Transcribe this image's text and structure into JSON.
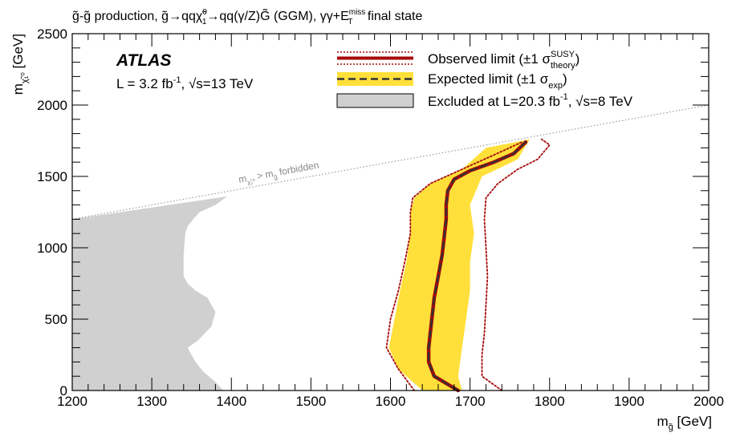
{
  "chart_data": {
    "type": "line",
    "title": "g̃-g̃ production, g̃→qqχ̃₁⁰→qq(γ/Z)G̃ (GGM), γγ+E_T^miss final state",
    "title_parts": {
      "a": "g̃-g̃ production, g̃→qqχ̃",
      "sup1": "0",
      "sub1": "1",
      "b": "→qq(γ/Z)G̃ (GGM), γγ+E",
      "sup2": "miss",
      "sub2": "T",
      "c": " final state"
    },
    "xlabel": {
      "main": "m",
      "sub": "g̃",
      "rest": " [GeV]"
    },
    "ylabel": {
      "main": "m",
      "sub": "χ̃₁⁰",
      "rest": " [GeV]"
    },
    "xlim": [
      1200,
      2000
    ],
    "ylim": [
      0,
      2500
    ],
    "xticks": [
      "1200",
      "1300",
      "1400",
      "1500",
      "1600",
      "1700",
      "1800",
      "1900",
      "2000"
    ],
    "yticks": [
      "0",
      "500",
      "1000",
      "1500",
      "2000",
      "2500"
    ],
    "experiment_label": "ATLAS",
    "lumi_label": {
      "a": "L = 3.2 fb",
      "sup": "-1",
      "b": ", √s=13 TeV"
    },
    "legend": [
      {
        "a": "Observed limit (±1 σ",
        "sup": "SUSY",
        "sub": "theory",
        "c": ")"
      },
      {
        "a": "Expected limit (±1 σ",
        "sub": "exp",
        "c": ")"
      },
      {
        "a": "Excluded at L=20.3 fb",
        "sup": "-1",
        "b": ", √s=8 TeV"
      }
    ],
    "forbidden_label": {
      "a": "m",
      "sub1": "χ̃₁⁰",
      "b": " > m",
      "sub2": "g̃",
      "c": " forbidden"
    },
    "forbidden_line": {
      "x": [
        1200,
        2000
      ],
      "y": [
        1200,
        2000
      ]
    },
    "series": [
      {
        "name": "Observed limit",
        "x": [
          1685,
          1670,
          1655,
          1648,
          1648,
          1652,
          1655,
          1660,
          1665,
          1668,
          1670,
          1670,
          1672,
          1680,
          1700,
          1730,
          1755,
          1770
        ],
        "y": [
          0,
          50,
          100,
          200,
          300,
          500,
          650,
          800,
          950,
          1100,
          1200,
          1300,
          1400,
          1480,
          1540,
          1600,
          1660,
          1740
        ]
      },
      {
        "name": "Expected limit",
        "x": [
          1685,
          1670,
          1655,
          1648,
          1648,
          1652,
          1655,
          1660,
          1665,
          1668,
          1670,
          1670,
          1672,
          1680,
          1700,
          1730,
          1755,
          1770
        ],
        "y": [
          0,
          50,
          100,
          200,
          300,
          500,
          650,
          800,
          950,
          1100,
          1200,
          1300,
          1400,
          1480,
          1540,
          1600,
          1660,
          1740
        ]
      },
      {
        "name": "Observed +1σ theory",
        "x": [
          1630,
          1610,
          1595,
          1600,
          1610,
          1618,
          1625,
          1625,
          1628,
          1650,
          1690,
          1730,
          1765
        ],
        "y": [
          0,
          150,
          300,
          500,
          700,
          900,
          1100,
          1250,
          1350,
          1450,
          1550,
          1650,
          1740
        ]
      },
      {
        "name": "Observed −1σ theory",
        "x": [
          1740,
          1715,
          1715,
          1718,
          1720,
          1722,
          1720,
          1718,
          1720,
          1735,
          1760,
          1785,
          1800,
          1790
        ],
        "y": [
          0,
          100,
          250,
          400,
          600,
          800,
          1000,
          1200,
          1350,
          1450,
          1550,
          1620,
          1720,
          1760
        ]
      }
    ],
    "expected_band": {
      "upper_x": [
        1690,
        1685,
        1690,
        1695,
        1700,
        1700,
        1705,
        1700,
        1715,
        1760,
        1775
      ],
      "upper_y": [
        0,
        100,
        300,
        500,
        700,
        900,
        1100,
        1300,
        1500,
        1620,
        1760
      ],
      "lower_x": [
        1640,
        1610,
        1598,
        1605,
        1612,
        1620,
        1625,
        1625,
        1630,
        1650,
        1690,
        1720
      ],
      "lower_y": [
        0,
        150,
        300,
        500,
        700,
        900,
        1100,
        1250,
        1350,
        1450,
        1550,
        1700
      ]
    },
    "excluded_8tev": {
      "x": [
        1200,
        1390,
        1380,
        1365,
        1355,
        1345,
        1358,
        1375,
        1380,
        1370,
        1355,
        1345,
        1340,
        1340,
        1342,
        1345,
        1352,
        1360,
        1380,
        1395,
        1200
      ],
      "y": [
        0,
        0,
        60,
        130,
        200,
        300,
        350,
        450,
        550,
        650,
        700,
        750,
        800,
        950,
        1100,
        1150,
        1200,
        1250,
        1300,
        1360,
        1200
      ]
    },
    "colors": {
      "observed": "#a50a0a",
      "expected": "#333333",
      "band": "#ffe03a",
      "excluded": "#d0d0d0",
      "forbidden": "#888888"
    }
  }
}
